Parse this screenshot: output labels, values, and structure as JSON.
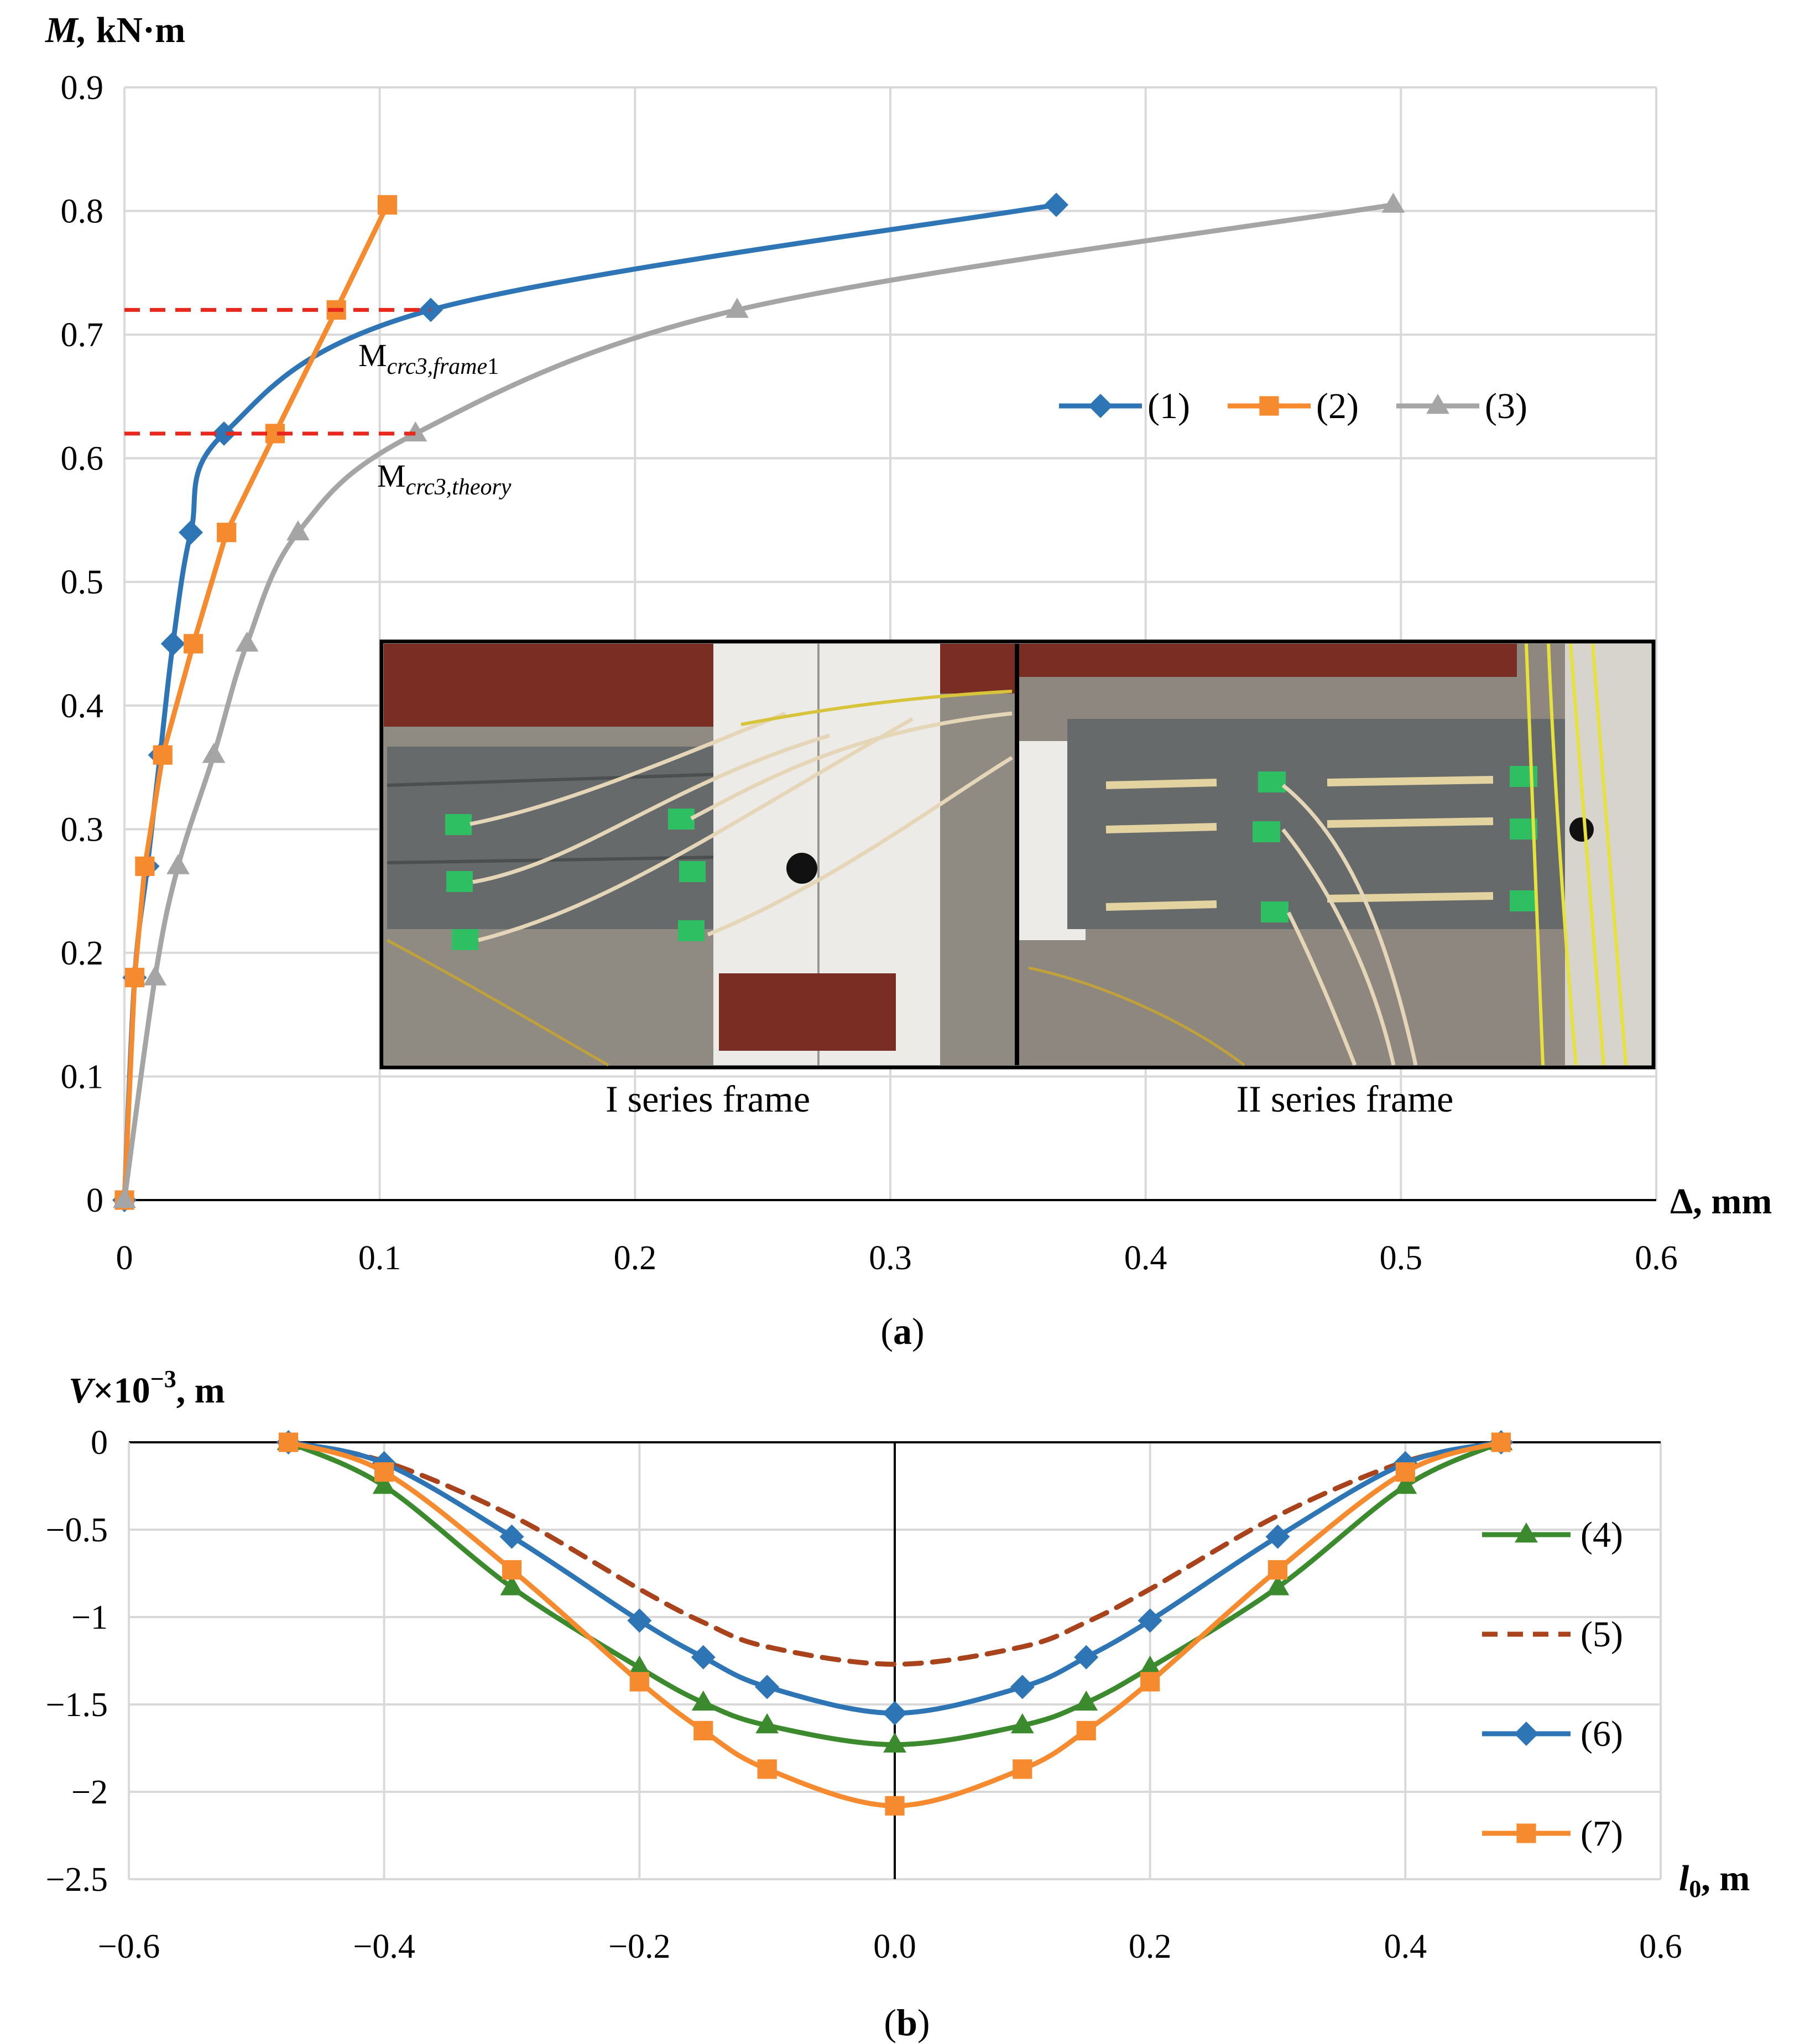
{
  "charts": [
    {
      "type": "line",
      "panel_caption": {
        "open": "(",
        "letter": "a",
        "close": ")"
      },
      "y_axis_label": {
        "italic": "M,",
        "rest": " kN·m"
      },
      "x_axis_label": "Δ, mm",
      "xlim": [
        0,
        0.6
      ],
      "ylim": [
        0,
        0.9
      ],
      "grid": true,
      "x_ticks": [
        0,
        0.1,
        0.2,
        0.3,
        0.4,
        0.5,
        0.6
      ],
      "x_tick_labels": [
        "0",
        "0.1",
        "0.2",
        "0.3",
        "0.4",
        "0.5",
        "0.6"
      ],
      "y_ticks": [
        0,
        0.1,
        0.2,
        0.3,
        0.4,
        0.5,
        0.6,
        0.7,
        0.8,
        0.9
      ],
      "y_tick_labels": [
        "0",
        "0.1",
        "0.2",
        "0.3",
        "0.4",
        "0.5",
        "0.6",
        "0.7",
        "0.8",
        "0.9"
      ],
      "legend_position": "right, in a row",
      "series": [
        {
          "name": "(1)",
          "color": "#2E75B6",
          "marker": "diamond",
          "smooth": true,
          "dashed": false,
          "x": [
            0,
            0.004,
            0.009,
            0.014,
            0.019,
            0.026,
            0.039,
            0.12,
            0.365
          ],
          "y": [
            0,
            0.18,
            0.27,
            0.36,
            0.45,
            0.54,
            0.62,
            0.72,
            0.805
          ]
        },
        {
          "name": "(2)",
          "color": "#F58A2E",
          "marker": "square",
          "smooth": false,
          "dashed": false,
          "x": [
            0,
            0.004,
            0.008,
            0.015,
            0.027,
            0.04,
            0.059,
            0.083,
            0.103
          ],
          "y": [
            0,
            0.18,
            0.27,
            0.36,
            0.45,
            0.54,
            0.62,
            0.72,
            0.805
          ]
        },
        {
          "name": "(3)",
          "color": "#A5A5A5",
          "marker": "triangle",
          "smooth": true,
          "dashed": false,
          "x": [
            0,
            0.012,
            0.021,
            0.035,
            0.048,
            0.068,
            0.114,
            0.24,
            0.497
          ],
          "y": [
            0,
            0.18,
            0.27,
            0.36,
            0.45,
            0.54,
            0.62,
            0.72,
            0.805
          ]
        }
      ],
      "reference_lines": [
        {
          "y": 0.72,
          "x_end": 0.12,
          "color": "#E8271D",
          "label_main": "M",
          "label_sub": "crc3,frame",
          "label_tail": "1"
        },
        {
          "y": 0.62,
          "x_end": 0.114,
          "color": "#E8271D",
          "label_main": "M",
          "label_sub": "crc3,theory",
          "label_tail": ""
        }
      ],
      "inset_photos": [
        {
          "caption": "I series frame"
        },
        {
          "caption": "II series frame"
        }
      ]
    },
    {
      "type": "line",
      "panel_caption": {
        "open": "(",
        "letter": "b",
        "close": ")"
      },
      "y_axis_label": {
        "italic": "V",
        "rest": "×10",
        "sup": "−3",
        "tail": ", m"
      },
      "x_axis_label": {
        "italic": "l",
        "sub": "0",
        "rest": ", m"
      },
      "xlim": [
        -0.6,
        0.6
      ],
      "ylim": [
        -2.5,
        0
      ],
      "grid": true,
      "x_ticks": [
        -0.6,
        -0.4,
        -0.2,
        0,
        0.2,
        0.4,
        0.6
      ],
      "x_tick_labels": [
        "−0.6",
        "−0.4",
        "−0.2",
        "0.0",
        "0.2",
        "0.4",
        "0.6"
      ],
      "y_ticks": [
        0,
        -0.5,
        -1,
        -1.5,
        -2,
        -2.5
      ],
      "y_tick_labels": [
        "0",
        "−0.5",
        "−1",
        "−1.5",
        "−2",
        "−2.5"
      ],
      "legend_position": "right, stacked",
      "series": [
        {
          "name": "(4)",
          "color": "#3C8A2E",
          "marker": "triangle",
          "smooth": true,
          "dashed": false,
          "x": [
            -0.475,
            -0.4,
            -0.3,
            -0.2,
            -0.15,
            -0.1,
            0,
            0.1,
            0.15,
            0.2,
            0.3,
            0.4,
            0.475
          ],
          "y": [
            0,
            -0.25,
            -0.83,
            -1.29,
            -1.49,
            -1.62,
            -1.73,
            -1.62,
            -1.49,
            -1.29,
            -0.83,
            -0.25,
            0
          ]
        },
        {
          "name": "(5)",
          "color": "#A8431C",
          "marker": "none",
          "smooth": true,
          "dashed": true,
          "x": [
            -0.475,
            -0.4,
            -0.3,
            -0.2,
            -0.15,
            -0.1,
            0,
            0.1,
            0.15,
            0.2,
            0.3,
            0.4,
            0.475
          ],
          "y": [
            0,
            -0.11,
            -0.42,
            -0.84,
            -1.03,
            -1.17,
            -1.27,
            -1.17,
            -1.03,
            -0.84,
            -0.42,
            -0.11,
            0
          ]
        },
        {
          "name": "(6)",
          "color": "#2E75B6",
          "marker": "diamond",
          "smooth": true,
          "dashed": false,
          "x": [
            -0.475,
            -0.4,
            -0.3,
            -0.2,
            -0.15,
            -0.1,
            0,
            0.1,
            0.15,
            0.2,
            0.3,
            0.4,
            0.475
          ],
          "y": [
            0,
            -0.12,
            -0.54,
            -1.02,
            -1.23,
            -1.4,
            -1.55,
            -1.4,
            -1.23,
            -1.02,
            -0.54,
            -0.12,
            0
          ]
        },
        {
          "name": "(7)",
          "color": "#F58A2E",
          "marker": "square",
          "smooth": true,
          "dashed": false,
          "x": [
            -0.475,
            -0.4,
            -0.3,
            -0.2,
            -0.15,
            -0.1,
            0,
            0.1,
            0.15,
            0.2,
            0.3,
            0.4,
            0.475
          ],
          "y": [
            0,
            -0.17,
            -0.73,
            -1.37,
            -1.65,
            -1.87,
            -2.08,
            -1.87,
            -1.65,
            -1.37,
            -0.73,
            -0.17,
            0
          ]
        }
      ]
    }
  ]
}
